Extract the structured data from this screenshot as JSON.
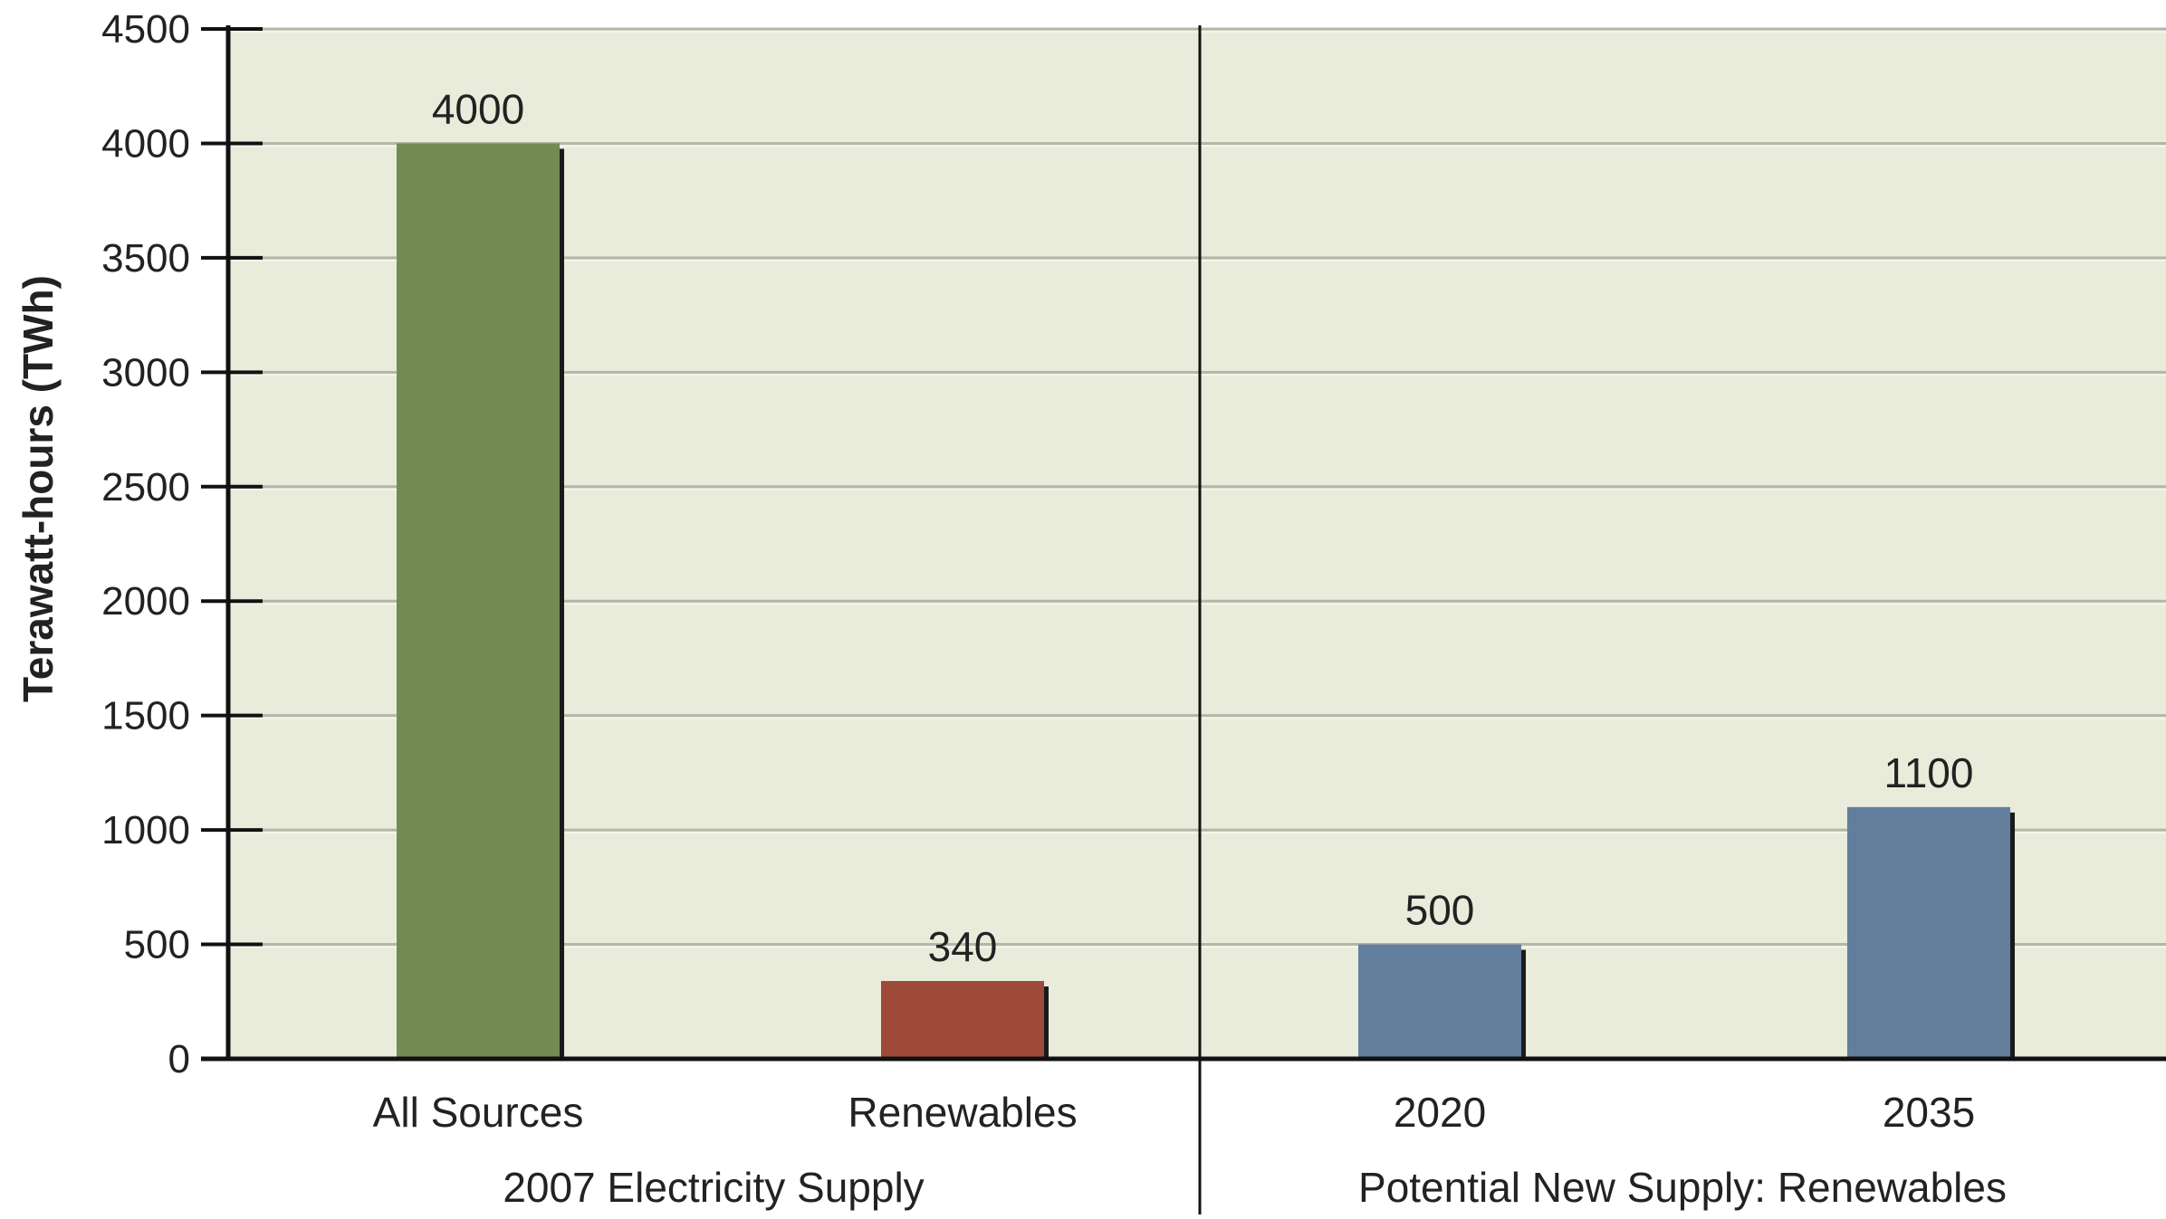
{
  "chart_data": {
    "type": "bar",
    "categories": [
      "All Sources",
      "Renewables",
      "2020",
      "2035"
    ],
    "values": [
      4000,
      340,
      500,
      1100
    ],
    "value_labels": [
      "4000",
      "340",
      "500",
      "1100"
    ],
    "bar_colors": [
      "#738A52",
      "#9E4A38",
      "#637E9D",
      "#637E9D"
    ],
    "groups": [
      {
        "label": "2007 Electricity Supply",
        "categories": [
          "All Sources",
          "Renewables"
        ]
      },
      {
        "label": "Potential New Supply: Renewables",
        "categories": [
          "2020",
          "2035"
        ]
      }
    ],
    "ylabel": "Terawatt-hours (TWh)",
    "ylim": [
      0,
      4500
    ],
    "yticks": [
      0,
      500,
      1000,
      1500,
      2000,
      2500,
      3000,
      3500,
      4000,
      4500
    ],
    "grid": true,
    "background_color": "#E9EBDB",
    "gridline_color": "#B4B6A6"
  }
}
